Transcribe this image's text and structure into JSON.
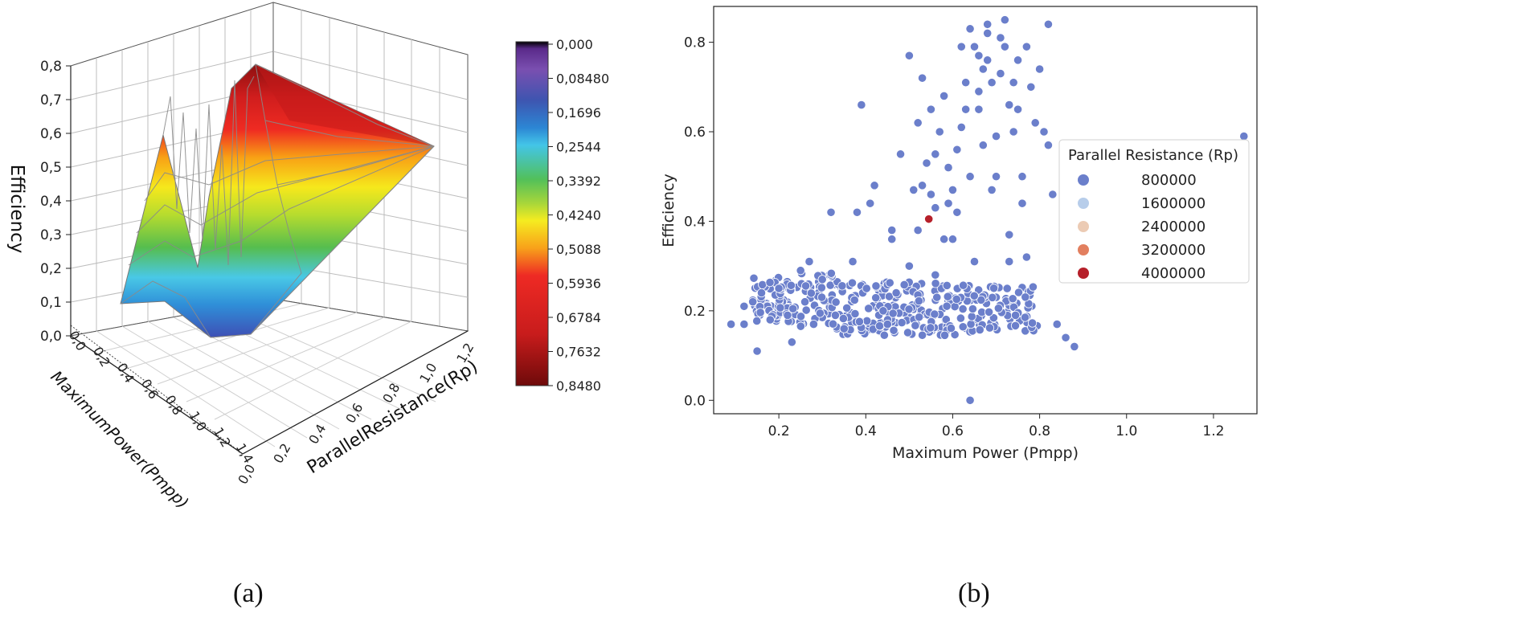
{
  "panel_labels": {
    "a": "(a)",
    "b": "(b)"
  },
  "chart_data": [
    {
      "id": "a",
      "type": "surface3d",
      "zlabel": "Efficiency",
      "xlabel": "MaximumPower(Pmpp)",
      "ylabel": "ParallelResistance(Rp)",
      "z_ticks": [
        "0,0",
        "0,1",
        "0,2",
        "0,3",
        "0,4",
        "0,5",
        "0,6",
        "0,7",
        "0,8"
      ],
      "x_ticks": [
        "0,0",
        "0,2",
        "0,4",
        "0,6",
        "0,8",
        "1,0",
        "1,2",
        "1,4"
      ],
      "y_ticks": [
        "0,0",
        "0,2",
        "0,4",
        "0,6",
        "0,8",
        "1,0",
        "1,2"
      ],
      "colorbar": {
        "ticks": [
          "0,000",
          "0,08480",
          "0,1696",
          "0,2544",
          "0,3392",
          "0,4240",
          "0,5088",
          "0,5936",
          "0,6784",
          "0,7632",
          "0,8480"
        ],
        "colors": [
          "#000000",
          "#5a2a8a",
          "#7a4fb0",
          "#3e55b0",
          "#2c86d4",
          "#43c5e8",
          "#52c05a",
          "#a8d63a",
          "#f5ec20",
          "#f8a11a",
          "#ee2a24",
          "#c81c1c",
          "#6e0a0a"
        ]
      }
    },
    {
      "id": "b",
      "type": "scatter",
      "xlabel": "Maximum Power (Pmpp)",
      "ylabel": "Efficiency",
      "xlim": [
        0.05,
        1.3
      ],
      "ylim": [
        -0.03,
        0.88
      ],
      "x_ticks": [
        "0.2",
        "0.4",
        "0.6",
        "0.8",
        "1.0",
        "1.2"
      ],
      "y_ticks": [
        "0.0",
        "0.2",
        "0.4",
        "0.6",
        "0.8"
      ],
      "legend": {
        "title": "Parallel Resistance (Rp)",
        "position": "center-right",
        "entries": [
          {
            "label": "800000",
            "color": "#6b7fcb"
          },
          {
            "label": "1600000",
            "color": "#b7cdea"
          },
          {
            "label": "2400000",
            "color": "#eccbb4"
          },
          {
            "label": "3200000",
            "color": "#e27f5f"
          },
          {
            "label": "4000000",
            "color": "#b6202a"
          }
        ]
      },
      "highlight_points": [
        {
          "x": 0.545,
          "y": 0.405,
          "series": "4000000"
        }
      ],
      "points": [
        [
          0.09,
          0.17
        ],
        [
          0.12,
          0.21
        ],
        [
          0.15,
          0.11
        ],
        [
          0.12,
          0.17
        ],
        [
          0.16,
          0.24
        ],
        [
          0.18,
          0.18
        ],
        [
          0.2,
          0.25
        ],
        [
          0.22,
          0.19
        ],
        [
          0.23,
          0.13
        ],
        [
          0.25,
          0.29
        ],
        [
          0.27,
          0.31
        ],
        [
          0.26,
          0.22
        ],
        [
          0.28,
          0.17
        ],
        [
          0.3,
          0.27
        ],
        [
          0.32,
          0.42
        ],
        [
          0.33,
          0.19
        ],
        [
          0.35,
          0.16
        ],
        [
          0.37,
          0.31
        ],
        [
          0.38,
          0.42
        ],
        [
          0.39,
          0.66
        ],
        [
          0.41,
          0.44
        ],
        [
          0.42,
          0.48
        ],
        [
          0.44,
          0.2
        ],
        [
          0.45,
          0.17
        ],
        [
          0.46,
          0.38
        ],
        [
          0.46,
          0.36
        ],
        [
          0.47,
          0.24
        ],
        [
          0.48,
          0.55
        ],
        [
          0.5,
          0.77
        ],
        [
          0.51,
          0.47
        ],
        [
          0.52,
          0.38
        ],
        [
          0.52,
          0.62
        ],
        [
          0.53,
          0.72
        ],
        [
          0.53,
          0.48
        ],
        [
          0.54,
          0.53
        ],
        [
          0.55,
          0.65
        ],
        [
          0.55,
          0.46
        ],
        [
          0.56,
          0.55
        ],
        [
          0.56,
          0.43
        ],
        [
          0.57,
          0.6
        ],
        [
          0.58,
          0.68
        ],
        [
          0.58,
          0.36
        ],
        [
          0.59,
          0.52
        ],
        [
          0.59,
          0.44
        ],
        [
          0.6,
          0.36
        ],
        [
          0.61,
          0.56
        ],
        [
          0.61,
          0.42
        ],
        [
          0.62,
          0.61
        ],
        [
          0.62,
          0.79
        ],
        [
          0.63,
          0.71
        ],
        [
          0.63,
          0.65
        ],
        [
          0.64,
          0.83
        ],
        [
          0.64,
          0.5
        ],
        [
          0.65,
          0.31
        ],
        [
          0.65,
          0.79
        ],
        [
          0.66,
          0.69
        ],
        [
          0.66,
          0.77
        ],
        [
          0.67,
          0.57
        ],
        [
          0.67,
          0.74
        ],
        [
          0.68,
          0.82
        ],
        [
          0.68,
          0.76
        ],
        [
          0.69,
          0.47
        ],
        [
          0.69,
          0.71
        ],
        [
          0.7,
          0.5
        ],
        [
          0.7,
          0.59
        ],
        [
          0.71,
          0.73
        ],
        [
          0.71,
          0.81
        ],
        [
          0.72,
          0.85
        ],
        [
          0.72,
          0.79
        ],
        [
          0.73,
          0.66
        ],
        [
          0.73,
          0.37
        ],
        [
          0.73,
          0.31
        ],
        [
          0.74,
          0.6
        ],
        [
          0.74,
          0.71
        ],
        [
          0.75,
          0.65
        ],
        [
          0.75,
          0.76
        ],
        [
          0.76,
          0.44
        ],
        [
          0.76,
          0.5
        ],
        [
          0.77,
          0.32
        ],
        [
          0.77,
          0.79
        ],
        [
          0.78,
          0.7
        ],
        [
          0.79,
          0.62
        ],
        [
          0.8,
          0.74
        ],
        [
          0.81,
          0.6
        ],
        [
          0.82,
          0.84
        ],
        [
          0.82,
          0.57
        ],
        [
          0.83,
          0.46
        ],
        [
          0.64,
          0.0
        ],
        [
          0.84,
          0.17
        ],
        [
          0.86,
          0.14
        ],
        [
          0.88,
          0.12
        ],
        [
          1.27,
          0.59
        ],
        [
          0.68,
          0.84
        ],
        [
          0.66,
          0.65
        ],
        [
          0.6,
          0.47
        ],
        [
          0.56,
          0.28
        ],
        [
          0.5,
          0.3
        ]
      ]
    }
  ]
}
